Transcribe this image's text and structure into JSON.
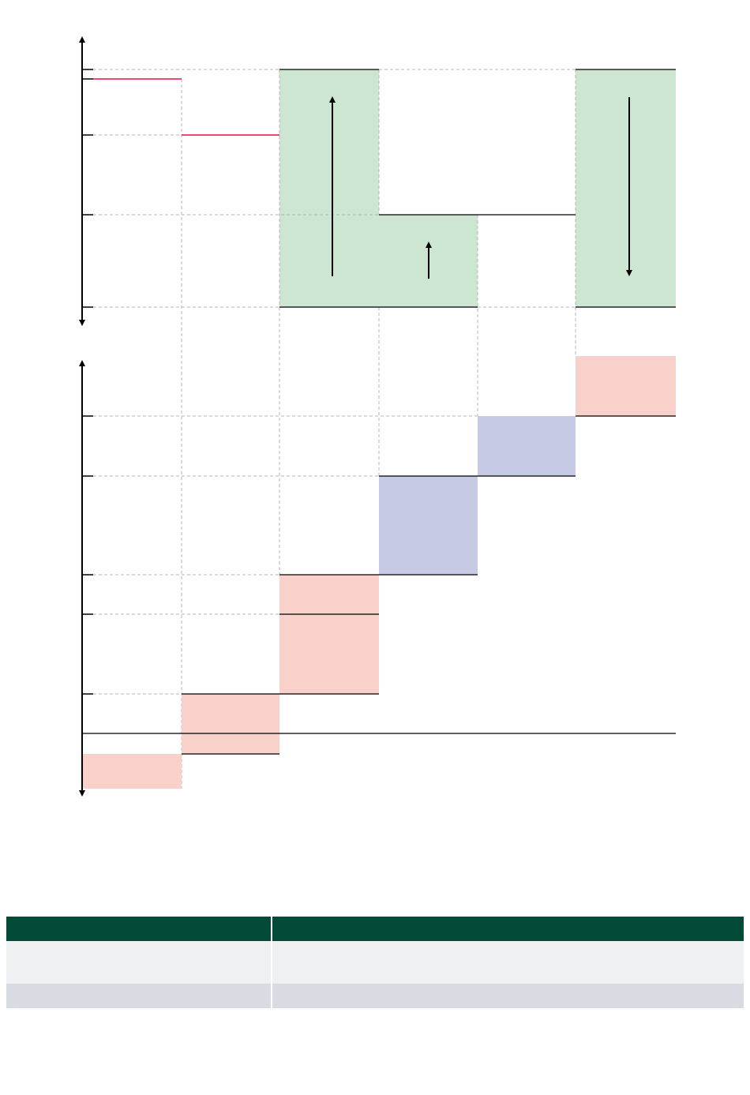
{
  "colors": {
    "green_fill": "#cde6d2",
    "pink_fill": "#f8d1ca",
    "lavender_fill": "#c6cae4",
    "red_line": "#e0143c",
    "dashed_guide": "#b4b4b4",
    "axis": "#000000",
    "table_header": "#024a38",
    "table_row_1": "#eff0f2",
    "table_row_2": "#d8dbe1"
  },
  "top_panel": {
    "red_levels": [
      {
        "column_start": 0,
        "column_end": 1,
        "level": "high"
      },
      {
        "column_start": 1,
        "column_end": 2,
        "level": "mid"
      }
    ],
    "green_bars": [
      {
        "column": 2,
        "direction": "up",
        "arrow": "arrow-up-icon"
      },
      {
        "column": 3,
        "direction": "up",
        "arrow": "arrow-up-icon"
      },
      {
        "column": 5,
        "direction": "down",
        "arrow": "arrow-down-icon"
      }
    ]
  },
  "bottom_panel": {
    "pink_blocks": [
      0,
      1,
      2,
      2,
      5
    ],
    "lavender_blocks": [
      3,
      4
    ]
  },
  "table": {
    "headers": [
      "",
      ""
    ],
    "rows": [
      [
        "",
        ""
      ],
      [
        "",
        ""
      ]
    ]
  }
}
